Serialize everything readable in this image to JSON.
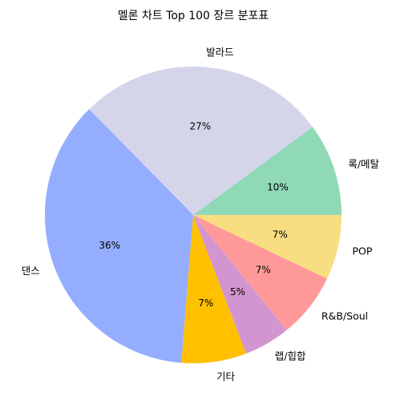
{
  "chart_data": {
    "type": "pie",
    "title": "멜론 차트 Top 100 장르 분포표",
    "categories": [
      "록/메탈",
      "발라드",
      "댄스",
      "기타",
      "랩/힙합",
      "R&B/Soul",
      "POP"
    ],
    "values": [
      10,
      27,
      36,
      7,
      5,
      7,
      7
    ],
    "percent_labels": [
      "10%",
      "27%",
      "36%",
      "7%",
      "5%",
      "7%",
      "7%"
    ],
    "colors": [
      "#8fd9b6",
      "#d5d5ea",
      "#95adfe",
      "#ffc000",
      "#d395d0",
      "#ff9999",
      "#f8dd81"
    ],
    "start_angle_deg": 0,
    "direction": "counterclockwise",
    "legend": "none"
  }
}
